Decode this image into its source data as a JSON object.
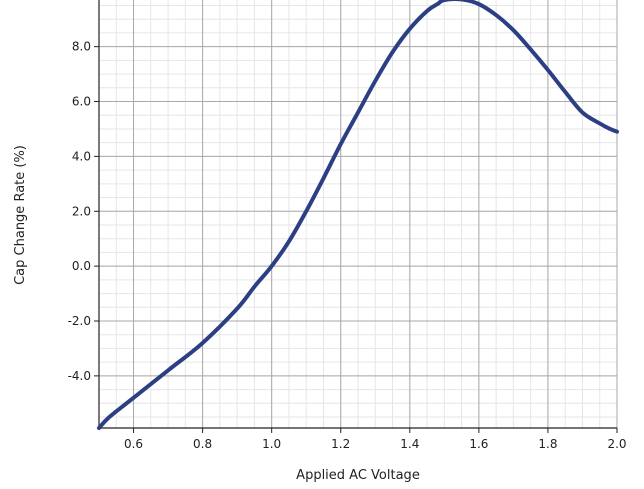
{
  "chart_data": {
    "type": "line",
    "title": "",
    "xlabel": "Applied AC Voltage",
    "ylabel": "Cap Change Rate (%)",
    "xlim": [
      0.5,
      2.0
    ],
    "ylim": [
      -5.9,
      9.7
    ],
    "x_ticks": [
      0.6,
      0.8,
      1.0,
      1.2,
      1.4,
      1.6,
      1.8,
      2.0
    ],
    "y_ticks": [
      -4.0,
      -2.0,
      0.0,
      2.0,
      4.0,
      6.0,
      8.0
    ],
    "x_tick_labels": [
      "0.6",
      "0.8",
      "1.0",
      "1.2",
      "1.4",
      "1.6",
      "1.8",
      "2.0"
    ],
    "y_tick_labels": [
      "-4.0",
      "-2.0",
      "0.0",
      "2.0",
      "4.0",
      "6.0",
      "8.0"
    ],
    "grid": true,
    "minor_grid": true,
    "line_color": "#2d3f84",
    "series": [
      {
        "x": [
          0.5,
          0.53,
          0.6,
          0.7,
          0.8,
          0.9,
          0.95,
          1.0,
          1.05,
          1.1,
          1.15,
          1.2,
          1.25,
          1.3,
          1.35,
          1.4,
          1.45,
          1.48,
          1.5,
          1.55,
          1.6,
          1.65,
          1.7,
          1.75,
          1.8,
          1.85,
          1.9,
          1.95,
          1.98,
          2.0
        ],
        "y": [
          -5.9,
          -5.5,
          -4.8,
          -3.8,
          -2.8,
          -1.55,
          -0.75,
          0.0,
          0.9,
          2.0,
          3.2,
          4.45,
          5.6,
          6.75,
          7.8,
          8.65,
          9.3,
          9.55,
          9.7,
          9.72,
          9.55,
          9.15,
          8.6,
          7.9,
          7.15,
          6.35,
          5.6,
          5.2,
          5.0,
          4.9
        ]
      }
    ]
  }
}
